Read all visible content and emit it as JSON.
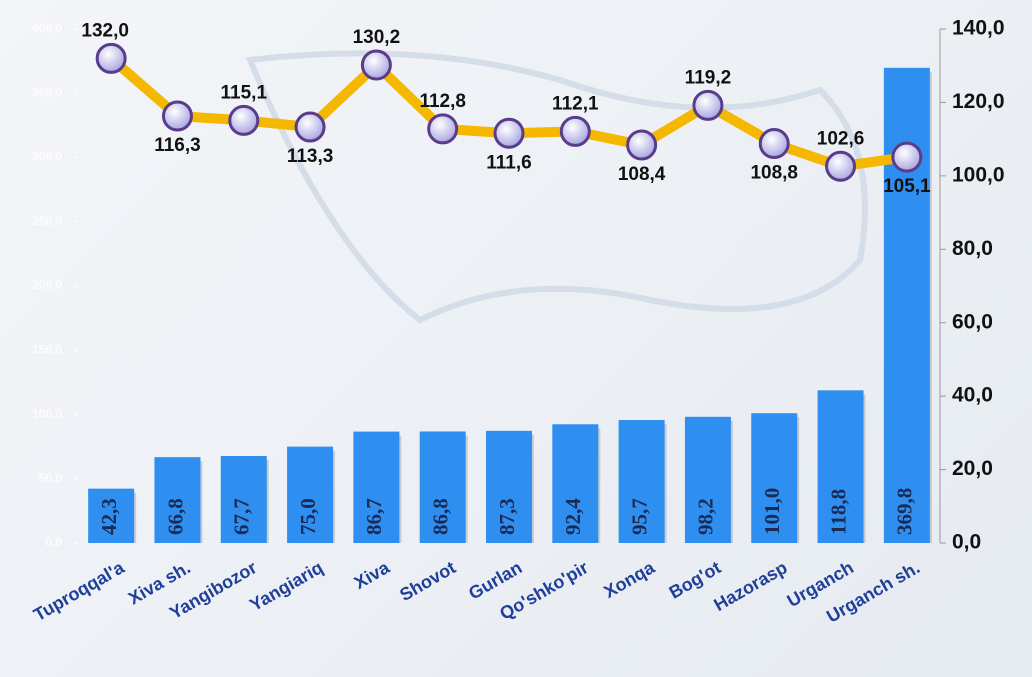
{
  "chart_data": {
    "type": "bar-line",
    "categories": [
      "Tuproqqal'a",
      "Xiva sh.",
      "Yangibozor",
      "Yangiariq",
      "Xiva",
      "Shovot",
      "Gurlan",
      "Qo'shko'pir",
      "Xonqa",
      "Bog'ot",
      "Hazorasp",
      "Urganch",
      "Urganch sh."
    ],
    "series": [
      {
        "type": "bar",
        "color": "#2f8ff0",
        "values": [
          42.3,
          66.8,
          67.7,
          75.0,
          86.7,
          86.8,
          87.3,
          92.4,
          95.7,
          98.2,
          101.0,
          118.8,
          369.8
        ],
        "value_labels": [
          "42,3",
          "66,8",
          "67,7",
          "75,0",
          "86,7",
          "86,8",
          "87,3",
          "92,4",
          "95,7",
          "98,2",
          "101,0",
          "118,8",
          "369,8"
        ]
      },
      {
        "type": "line",
        "axis": "y2",
        "color": "#f5b800",
        "values": [
          132.0,
          116.3,
          115.1,
          113.3,
          130.2,
          112.8,
          111.6,
          112.1,
          108.4,
          119.2,
          108.8,
          102.6,
          105.1
        ],
        "value_labels": [
          "132,0",
          "116,3",
          "115,1",
          "113,3",
          "130,2",
          "112,8",
          "111,6",
          "112,1",
          "108,4",
          "119,2",
          "108,8",
          "102,6",
          "105,1"
        ]
      }
    ],
    "ylim": [
      0,
      400
    ],
    "yticks": [
      {
        "value": 0,
        "label": "0,0"
      },
      {
        "value": 50,
        "label": "50,0"
      },
      {
        "value": 100,
        "label": "100,0"
      },
      {
        "value": 150,
        "label": "150,0"
      },
      {
        "value": 200,
        "label": "200,0"
      },
      {
        "value": 250,
        "label": "250,0"
      },
      {
        "value": 300,
        "label": "300,0"
      },
      {
        "value": 350,
        "label": "350,0"
      },
      {
        "value": 400,
        "label": "400,0"
      }
    ],
    "y2lim": [
      0,
      140
    ],
    "y2ticks": [
      {
        "value": 0,
        "label": "0,0"
      },
      {
        "value": 20,
        "label": "20,0"
      },
      {
        "value": 40,
        "label": "40,0"
      },
      {
        "value": 60,
        "label": "60,0"
      },
      {
        "value": 80,
        "label": "80,0"
      },
      {
        "value": 100,
        "label": "100,0"
      },
      {
        "value": 120,
        "label": "120,0"
      },
      {
        "value": 140,
        "label": "140,0"
      }
    ]
  }
}
